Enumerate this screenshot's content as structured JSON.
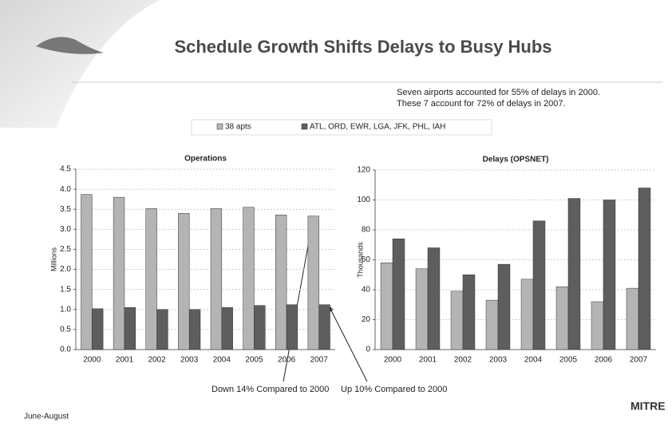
{
  "slide": {
    "title": "Schedule Growth Shifts Delays to Busy Hubs",
    "note": [
      "Seven airports accounted for 55% of delays in 2000.",
      "These 7 account for 72% of delays in 2007."
    ],
    "annotations": [
      "Down 14% Compared to 2000",
      "Up 10% Compared to 2000"
    ],
    "footer": "June-August",
    "logo": "MITRE"
  },
  "chart_data": [
    {
      "type": "bar",
      "title": "Operations",
      "y_label": "Millions",
      "categories": [
        "2000",
        "2001",
        "2002",
        "2003",
        "2004",
        "2005",
        "2006",
        "2007"
      ],
      "series": [
        {
          "name": "38 apts",
          "color": "#b4b4b4",
          "values": [
            3.87,
            3.8,
            3.52,
            3.4,
            3.52,
            3.55,
            3.36,
            3.33
          ]
        },
        {
          "name": "ATL, ORD, EWR, LGA, JFK, PHL, IAH",
          "color": "#5e5e5e",
          "values": [
            1.02,
            1.05,
            1.0,
            1.0,
            1.05,
            1.1,
            1.12,
            1.12
          ]
        }
      ],
      "ylim": [
        0,
        4.5
      ],
      "yticks": [
        {
          "value": 0,
          "label": "0.0"
        },
        0.5,
        {
          "value": 1,
          "label": "1.0"
        },
        1.5,
        {
          "value": 2,
          "label": "2.0"
        },
        2.5,
        {
          "value": 3,
          "label": "3.0"
        },
        3.5,
        {
          "value": 4,
          "label": "4.0"
        },
        4.5
      ],
      "grid": true
    },
    {
      "type": "bar",
      "title": "Delays (OPSNET)",
      "y_label": "Thousands",
      "categories": [
        "2000",
        "2001",
        "2002",
        "2003",
        "2004",
        "2005",
        "2006",
        "2007"
      ],
      "series": [
        {
          "color": "#b4b4b4",
          "values": [
            58,
            54,
            39,
            33,
            47,
            42,
            32,
            41
          ]
        },
        {
          "color": "#5e5e5e",
          "values": [
            74,
            68,
            50,
            57,
            86,
            101,
            100,
            108
          ]
        }
      ],
      "ylim": [
        0,
        120
      ],
      "yticks": [
        0,
        20,
        40,
        60,
        80,
        100,
        120
      ],
      "grid": true
    }
  ]
}
